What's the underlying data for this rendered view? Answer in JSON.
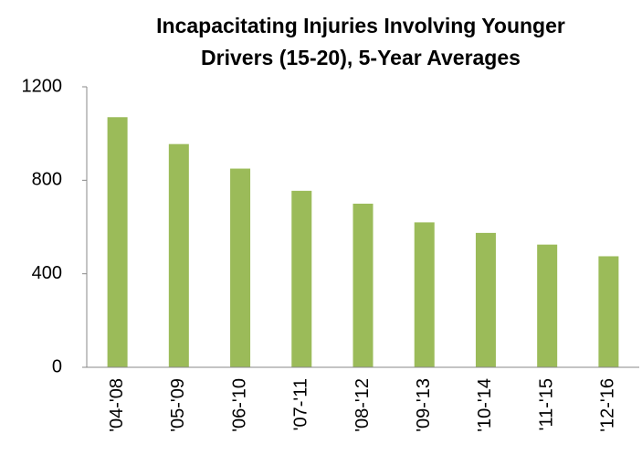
{
  "chart_data": {
    "type": "bar",
    "title": [
      "Incapacitating Injuries Involving Younger",
      "Drivers (15-20), 5-Year Averages"
    ],
    "categories": [
      "'04-'08",
      "'05-'09",
      "'06-'10",
      "'07-'11",
      "'08-'12",
      "'09-'13",
      "'10-'14",
      "'11-'15",
      "'12-'16"
    ],
    "values": [
      1070,
      955,
      850,
      755,
      700,
      620,
      575,
      525,
      475
    ],
    "color": "#9bbb59",
    "ylim": [
      0,
      1200
    ],
    "yticks": [
      0,
      400,
      800,
      1200
    ],
    "grid": false
  }
}
